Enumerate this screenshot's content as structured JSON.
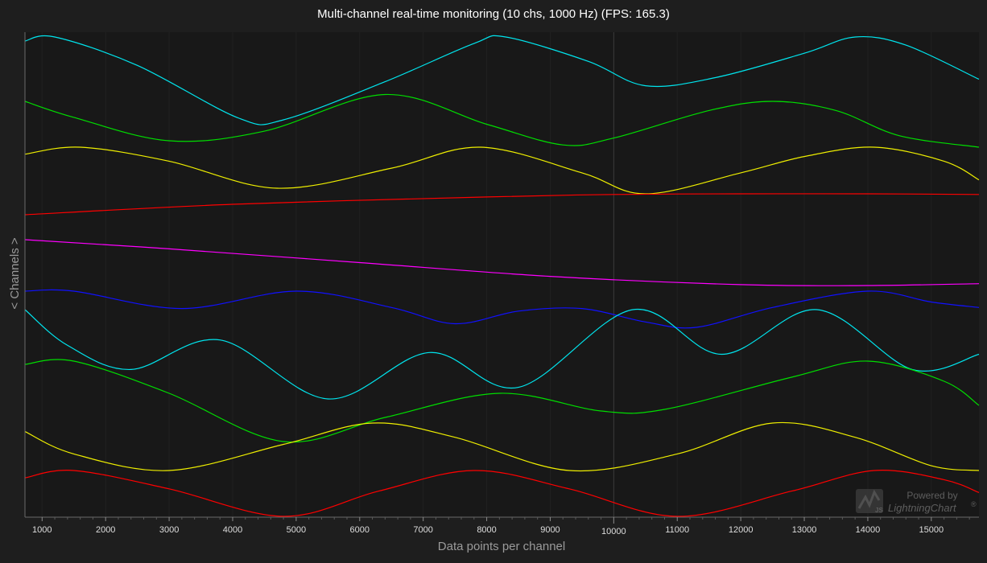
{
  "chart_data": {
    "type": "line",
    "title": "Multi-channel real-time monitoring (10 chs, 1000 Hz) (FPS: 165.3)",
    "xlabel": "Data points per channel",
    "ylabel": "< Channels >",
    "xlim": [
      730,
      15750
    ],
    "x_ticks": [
      1000,
      2000,
      3000,
      4000,
      5000,
      6000,
      7000,
      8000,
      9000,
      10000,
      11000,
      12000,
      13000,
      14000,
      15000
    ],
    "x_tick_labels": [
      "1000",
      "2000",
      "3000",
      "4000",
      "5000",
      "6000",
      "7000",
      "8000",
      "9000",
      "10000",
      "11000",
      "12000",
      "13000",
      "14000",
      "15000"
    ],
    "emphasized_tick": 10000,
    "grid": true,
    "legend": "none",
    "series": [
      {
        "color": "#00e5ee",
        "x": [
          730,
          1200,
          2500,
          4100,
          4800,
          6400,
          7800,
          8300,
          9600,
          10500,
          11600,
          13000,
          13800,
          14600,
          15750
        ],
        "y": [
          0.05,
          0.0,
          0.35,
          1.0,
          1.02,
          0.55,
          0.08,
          0.0,
          0.3,
          0.6,
          0.5,
          0.2,
          0.0,
          0.1,
          0.52
        ]
      },
      {
        "color": "#00dd00",
        "x": [
          730,
          1500,
          3000,
          4500,
          6400,
          8000,
          9200,
          10000,
          11500,
          12500,
          13500,
          14500,
          15750
        ],
        "y": [
          0.0,
          0.35,
          0.86,
          0.65,
          -0.15,
          0.5,
          0.95,
          0.8,
          0.2,
          0.0,
          0.2,
          0.75,
          1.0
        ]
      },
      {
        "color": "#eeee00",
        "x": [
          730,
          1600,
          3000,
          4700,
          6500,
          7900,
          9500,
          10500,
          12000,
          13000,
          14100,
          15200,
          15750
        ],
        "y": [
          0.15,
          0.0,
          0.3,
          0.88,
          0.45,
          0.0,
          0.55,
          1.0,
          0.55,
          0.2,
          0.0,
          0.3,
          0.7
        ]
      },
      {
        "color": "#ff0000",
        "x": [
          730,
          4000,
          8000,
          10000,
          12000,
          14000,
          15750
        ],
        "y": [
          1.0,
          0.5,
          0.15,
          0.03,
          0.0,
          0.0,
          0.03
        ]
      },
      {
        "color": "#ff00ff",
        "x": [
          730,
          3000,
          6000,
          9000,
          12000,
          14000,
          15750
        ],
        "y": [
          0.0,
          0.2,
          0.5,
          0.8,
          0.98,
          1.0,
          0.96
        ]
      },
      {
        "color": "#1111ff",
        "x": [
          730,
          1500,
          3200,
          5000,
          6500,
          7500,
          8500,
          9500,
          10500,
          11300,
          12500,
          14000,
          15000,
          15750
        ],
        "y": [
          0.0,
          0.0,
          0.48,
          0.0,
          0.45,
          0.9,
          0.55,
          0.48,
          0.85,
          1.0,
          0.45,
          0.0,
          0.3,
          0.45
        ]
      },
      {
        "color": "#00e5ee",
        "x": [
          730,
          1400,
          2400,
          3800,
          5500,
          7100,
          8500,
          10300,
          11700,
          13200,
          14700,
          15750
        ],
        "y": [
          0.0,
          0.4,
          0.67,
          0.34,
          1.0,
          0.48,
          0.87,
          0.0,
          0.5,
          0.0,
          0.67,
          0.5
        ]
      },
      {
        "color": "#00dd00",
        "x": [
          730,
          1500,
          3000,
          4800,
          6400,
          8200,
          9800,
          10800,
          12800,
          14000,
          15200,
          15750
        ],
        "y": [
          0.04,
          0.0,
          0.4,
          1.0,
          0.7,
          0.4,
          0.62,
          0.6,
          0.2,
          0.0,
          0.25,
          0.55
        ]
      },
      {
        "color": "#eeee00",
        "x": [
          730,
          1500,
          3000,
          4800,
          6200,
          7500,
          9300,
          11000,
          12500,
          13800,
          15000,
          15750
        ],
        "y": [
          0.18,
          0.65,
          1.0,
          0.45,
          0.0,
          0.3,
          1.0,
          0.65,
          0.0,
          0.3,
          0.9,
          1.0
        ]
      },
      {
        "color": "#ff0000",
        "x": [
          730,
          1500,
          3000,
          4800,
          6300,
          7800,
          9300,
          11000,
          12800,
          14100,
          15200,
          15750
        ],
        "y": [
          0.16,
          0.0,
          0.4,
          1.0,
          0.45,
          0.0,
          0.4,
          1.0,
          0.45,
          0.0,
          0.2,
          0.48
        ]
      }
    ]
  },
  "branding": {
    "line1": "Powered by",
    "line2": "LightningChart",
    "mark": "®",
    "badge": "JS",
    "logo_icon": "lightningchart-logo-icon"
  }
}
